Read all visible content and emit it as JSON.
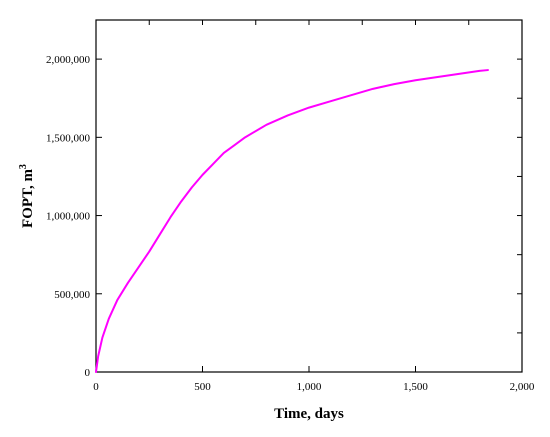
{
  "chart_data": {
    "type": "line",
    "xlabel": "Time, days",
    "ylabel_main": "FOPT, m",
    "ylabel_sup": "3",
    "xlim": [
      0,
      2000
    ],
    "ylim": [
      0,
      2250000
    ],
    "x_ticks": [
      0,
      500,
      1000,
      1500,
      2000
    ],
    "x_tick_labels": [
      "0",
      "500",
      "1,000",
      "1,500",
      "2,000"
    ],
    "y_ticks": [
      0,
      500000,
      1000000,
      1500000,
      2000000
    ],
    "y_tick_labels": [
      "0",
      "500,000",
      "1,000,000",
      "1,500,000",
      "2,000,000"
    ],
    "x_minor_step": 250,
    "y_minor_step": 250000,
    "grid": false,
    "series": [
      {
        "color": "#ff00ff",
        "x": [
          0,
          10,
          30,
          60,
          100,
          150,
          200,
          250,
          300,
          350,
          400,
          450,
          500,
          550,
          600,
          650,
          700,
          800,
          900,
          1000,
          1100,
          1200,
          1300,
          1400,
          1500,
          1600,
          1700,
          1800,
          1840
        ],
        "y": [
          0,
          100000,
          220000,
          340000,
          460000,
          570000,
          670000,
          770000,
          880000,
          990000,
          1090000,
          1180000,
          1260000,
          1330000,
          1400000,
          1450000,
          1500000,
          1580000,
          1640000,
          1690000,
          1730000,
          1770000,
          1810000,
          1840000,
          1865000,
          1885000,
          1905000,
          1925000,
          1930000
        ]
      }
    ]
  }
}
